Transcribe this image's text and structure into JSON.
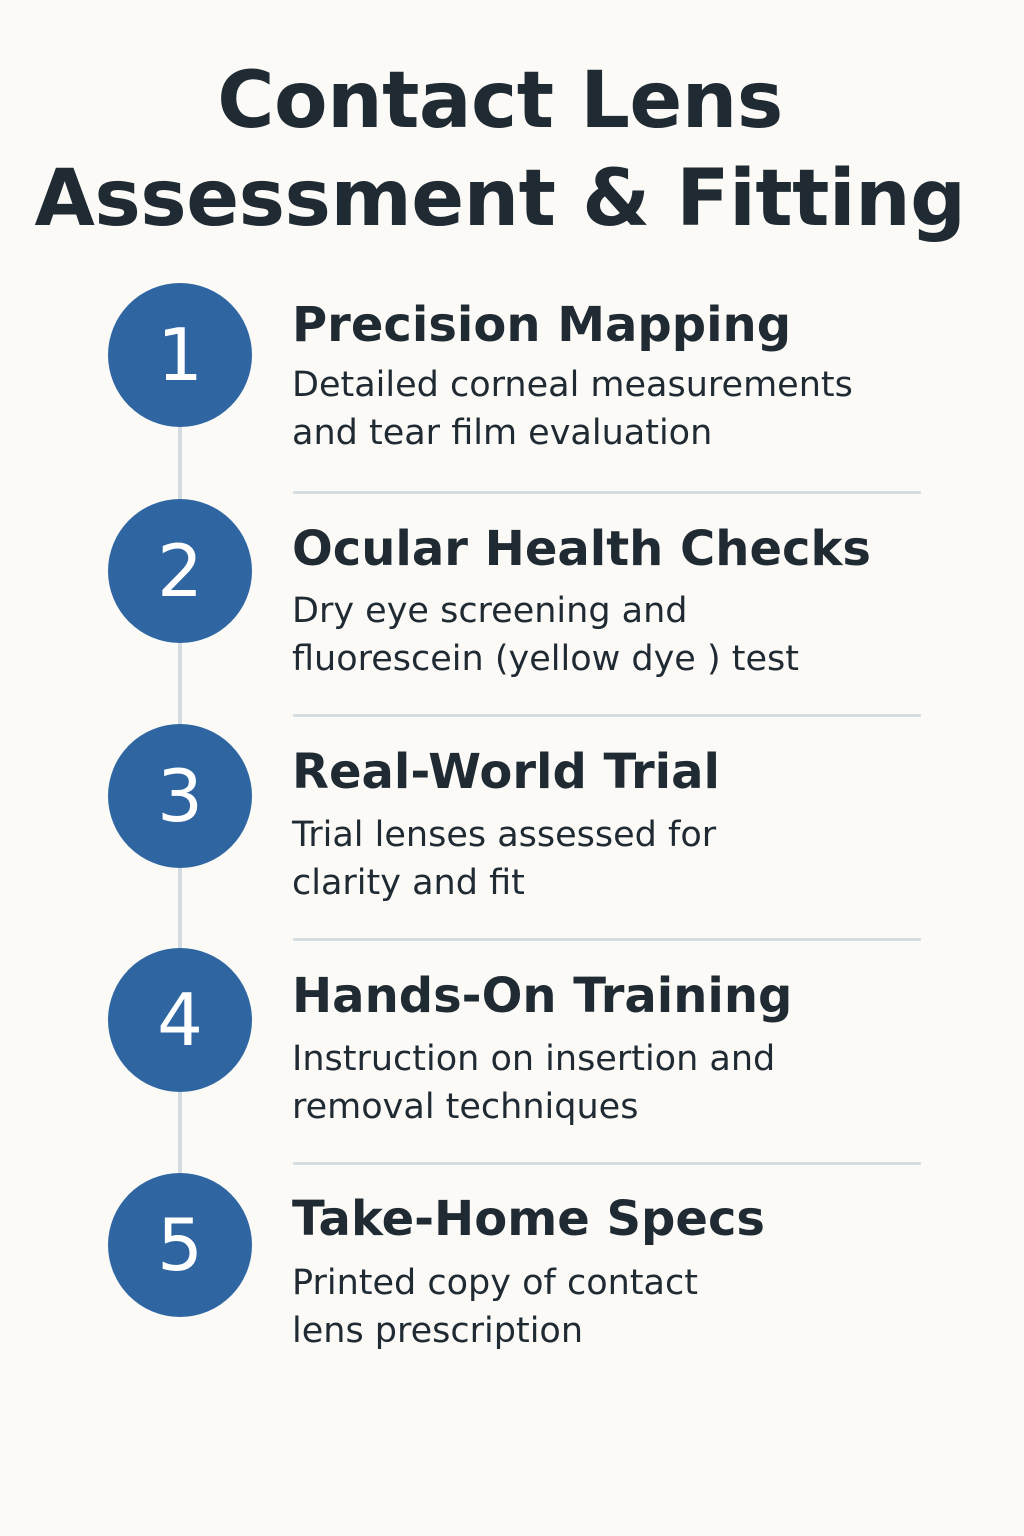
{
  "title": {
    "line1": "Contact Lens",
    "line2": "Assessment & Fitting"
  },
  "colors": {
    "accent": "#2f66a2",
    "text": "#1f2a33",
    "background": "#fbfaf6",
    "divider": "#d6dee2"
  },
  "steps": [
    {
      "number": "1",
      "title": "Precision Mapping",
      "description_lines": [
        "Detailed corneal measurements",
        "and tear film evaluation"
      ]
    },
    {
      "number": "2",
      "title": "Ocular Health Checks",
      "description_lines": [
        "Dry eye screening and",
        "fluorescein (yellow dye ) test"
      ]
    },
    {
      "number": "3",
      "title": "Real-World Trial",
      "description_lines": [
        "Trial lenses assessed for",
        "clarity and fit"
      ]
    },
    {
      "number": "4",
      "title": "Hands-On Training",
      "description_lines": [
        "Instruction on insertion and",
        "removal techniques"
      ]
    },
    {
      "number": "5",
      "title": "Take-Home Specs",
      "description_lines": [
        "Printed copy of contact",
        "lens prescription"
      ]
    }
  ]
}
